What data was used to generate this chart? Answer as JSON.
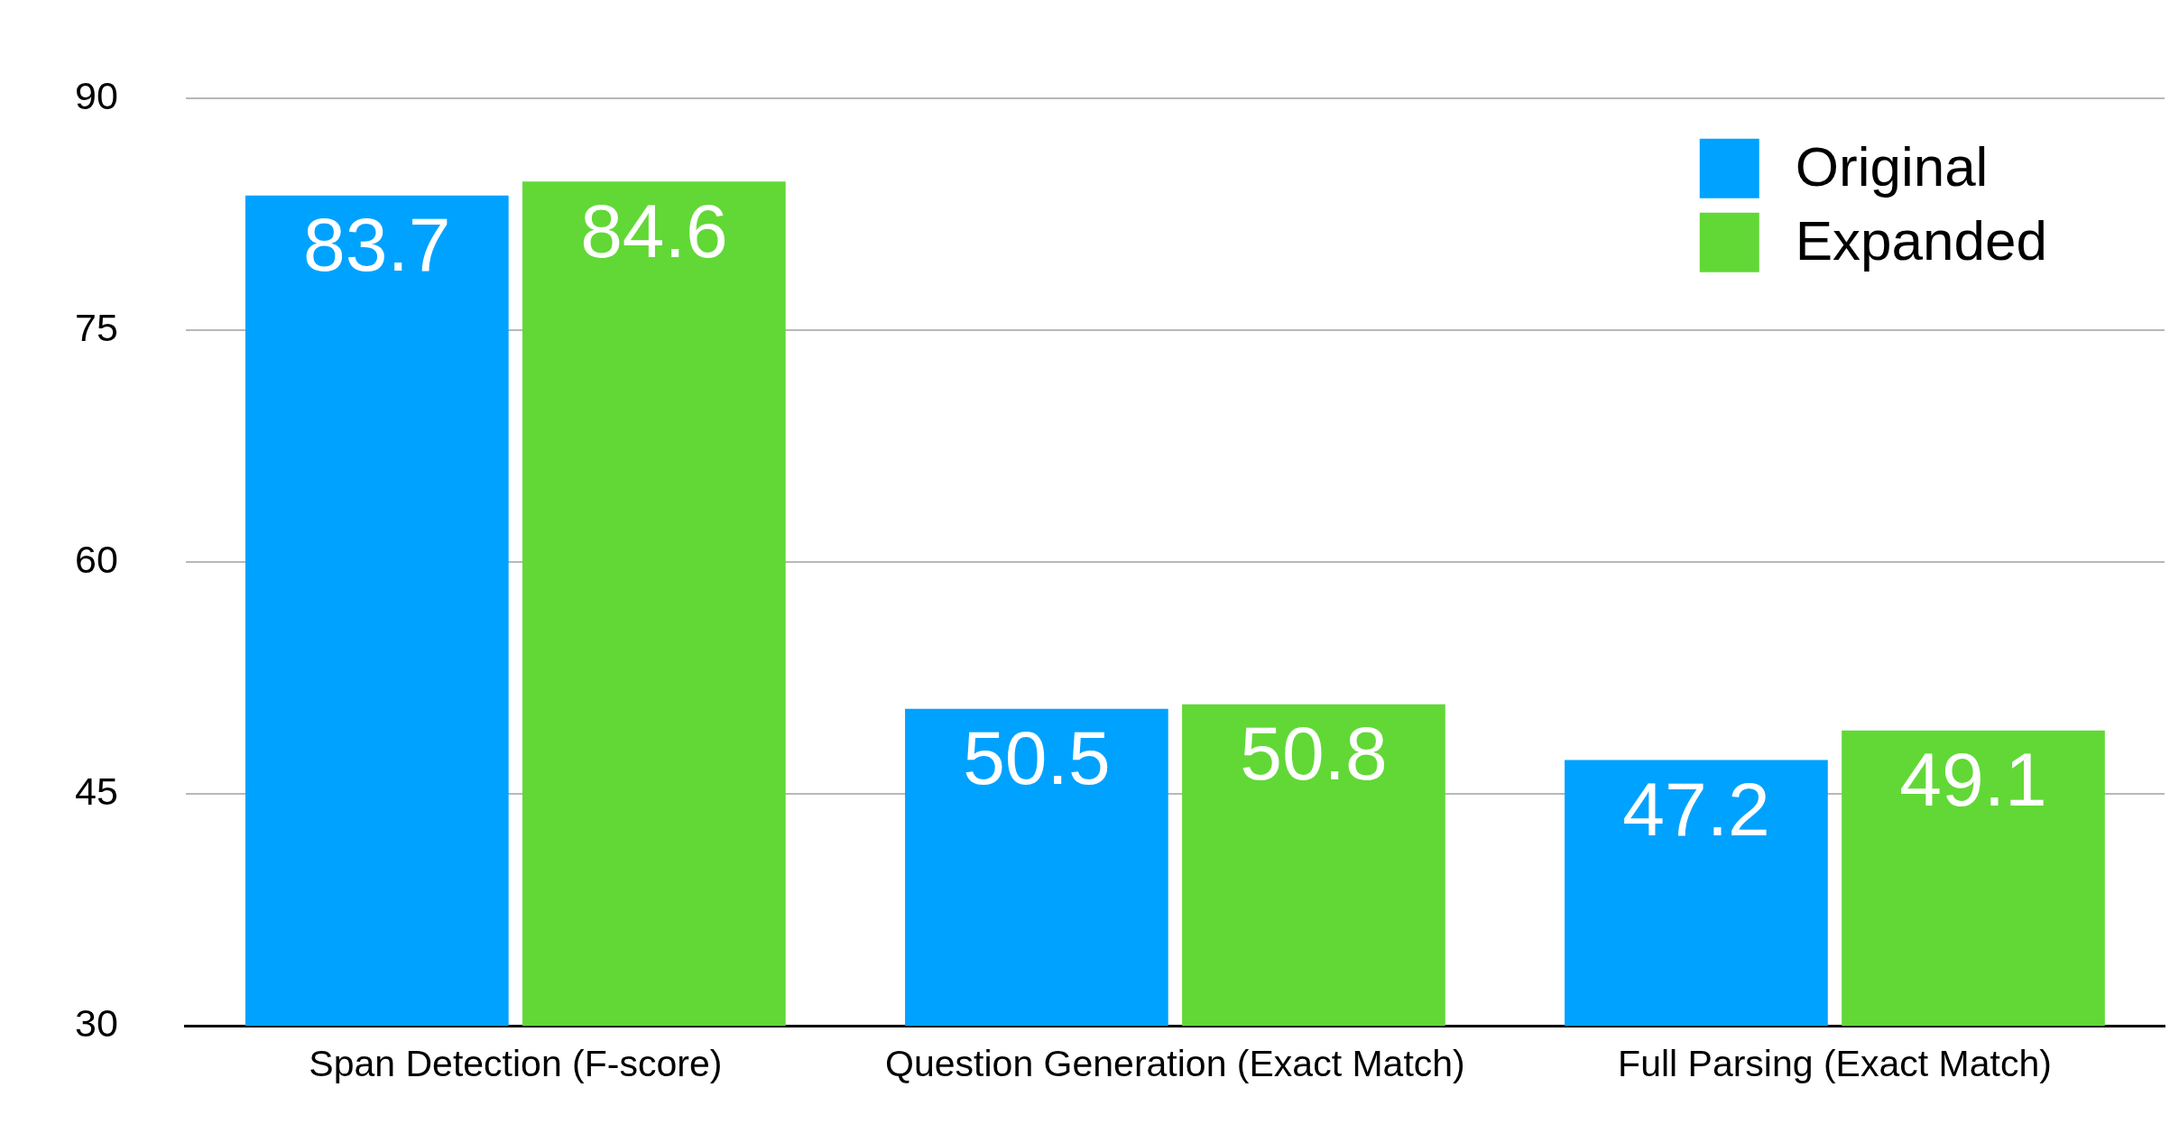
{
  "chart_data": {
    "type": "bar",
    "categories": [
      "Span Detection (F-score)",
      "Question Generation (Exact Match)",
      "Full Parsing (Exact Match)"
    ],
    "series": [
      {
        "name": "Original",
        "color": "#00a2ff",
        "values": [
          83.7,
          50.5,
          47.2
        ]
      },
      {
        "name": "Expanded",
        "color": "#61d836",
        "values": [
          84.6,
          50.8,
          49.1
        ]
      }
    ],
    "ylim": [
      30,
      90
    ],
    "yticks": [
      30,
      45,
      60,
      75,
      90
    ],
    "grid": "y",
    "legend": "top right",
    "data_labels": true
  }
}
